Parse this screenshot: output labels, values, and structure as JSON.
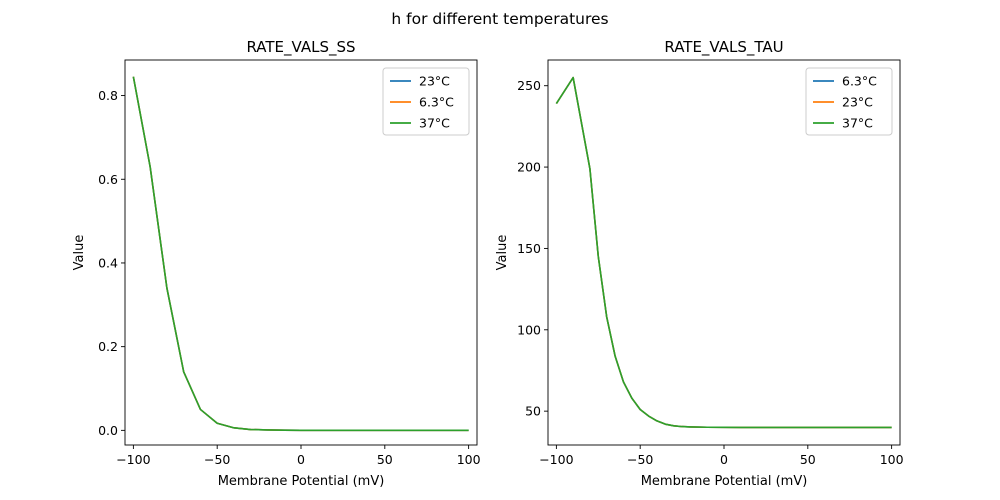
{
  "figure": {
    "suptitle": "h for different temperatures"
  },
  "colors": {
    "blue": "#1f77b4",
    "orange": "#ff7f0e",
    "green": "#2ca02c"
  },
  "chart_data": [
    {
      "type": "line",
      "title": "RATE_VALS_SS",
      "xlabel": "Membrane Potential (mV)",
      "ylabel": "Value",
      "xlim": [
        -105,
        105
      ],
      "ylim": [
        -0.035,
        0.885
      ],
      "xticks": [
        -100,
        -50,
        0,
        50,
        100
      ],
      "xtick_labels": [
        "−100",
        "−50",
        "0",
        "50",
        "100"
      ],
      "yticks": [
        0.0,
        0.2,
        0.4,
        0.6,
        0.8
      ],
      "ytick_labels": [
        "0.0",
        "0.2",
        "0.4",
        "0.6",
        "0.8"
      ],
      "legend_position": "top-right",
      "x": [
        -100,
        -90,
        -80,
        -70,
        -60,
        -50,
        -40,
        -30,
        -20,
        -10,
        0,
        10,
        20,
        30,
        40,
        50,
        60,
        70,
        80,
        90,
        100
      ],
      "series": [
        {
          "name": "23°C",
          "color_key": "blue",
          "values": [
            0.845,
            0.63,
            0.34,
            0.14,
            0.05,
            0.017,
            0.006,
            0.002,
            0.001,
            0.0005,
            0.0002,
            0.0001,
            0,
            0,
            0,
            0,
            0,
            0,
            0,
            0,
            0
          ]
        },
        {
          "name": "6.3°C",
          "color_key": "orange",
          "values": [
            0.845,
            0.63,
            0.34,
            0.14,
            0.05,
            0.017,
            0.006,
            0.002,
            0.001,
            0.0005,
            0.0002,
            0.0001,
            0,
            0,
            0,
            0,
            0,
            0,
            0,
            0,
            0
          ]
        },
        {
          "name": "37°C",
          "color_key": "green",
          "values": [
            0.845,
            0.63,
            0.34,
            0.14,
            0.05,
            0.017,
            0.006,
            0.002,
            0.001,
            0.0005,
            0.0002,
            0.0001,
            0,
            0,
            0,
            0,
            0,
            0,
            0,
            0,
            0
          ]
        }
      ]
    },
    {
      "type": "line",
      "title": "RATE_VALS_TAU",
      "xlabel": "Membrane Potential (mV)",
      "ylabel": "Value",
      "xlim": [
        -105,
        105
      ],
      "ylim": [
        29.2,
        265.8
      ],
      "xticks": [
        -100,
        -50,
        0,
        50,
        100
      ],
      "xtick_labels": [
        "−100",
        "−50",
        "0",
        "50",
        "100"
      ],
      "yticks": [
        50,
        100,
        150,
        200,
        250
      ],
      "ytick_labels": [
        "50",
        "100",
        "150",
        "200",
        "250"
      ],
      "legend_position": "top-right",
      "x": [
        -100,
        -90,
        -80,
        -75,
        -70,
        -65,
        -60,
        -55,
        -50,
        -45,
        -40,
        -35,
        -30,
        -25,
        -20,
        -10,
        0,
        10,
        20,
        30,
        40,
        50,
        60,
        70,
        80,
        90,
        100
      ],
      "series": [
        {
          "name": "6.3°C",
          "color_key": "blue",
          "values": [
            239,
            255,
            199,
            145,
            108,
            84,
            68,
            58,
            51,
            47,
            44,
            42,
            41,
            40.5,
            40.3,
            40.1,
            40.05,
            40.02,
            40.01,
            40,
            40,
            40,
            40,
            40,
            40,
            40,
            40
          ]
        },
        {
          "name": "23°C",
          "color_key": "orange",
          "values": [
            239,
            255,
            199,
            145,
            108,
            84,
            68,
            58,
            51,
            47,
            44,
            42,
            41,
            40.5,
            40.3,
            40.1,
            40.05,
            40.02,
            40.01,
            40,
            40,
            40,
            40,
            40,
            40,
            40,
            40
          ]
        },
        {
          "name": "37°C",
          "color_key": "green",
          "values": [
            239,
            255,
            199,
            145,
            108,
            84,
            68,
            58,
            51,
            47,
            44,
            42,
            41,
            40.5,
            40.3,
            40.1,
            40.05,
            40.02,
            40.01,
            40,
            40,
            40,
            40,
            40,
            40,
            40,
            40
          ]
        }
      ]
    }
  ]
}
